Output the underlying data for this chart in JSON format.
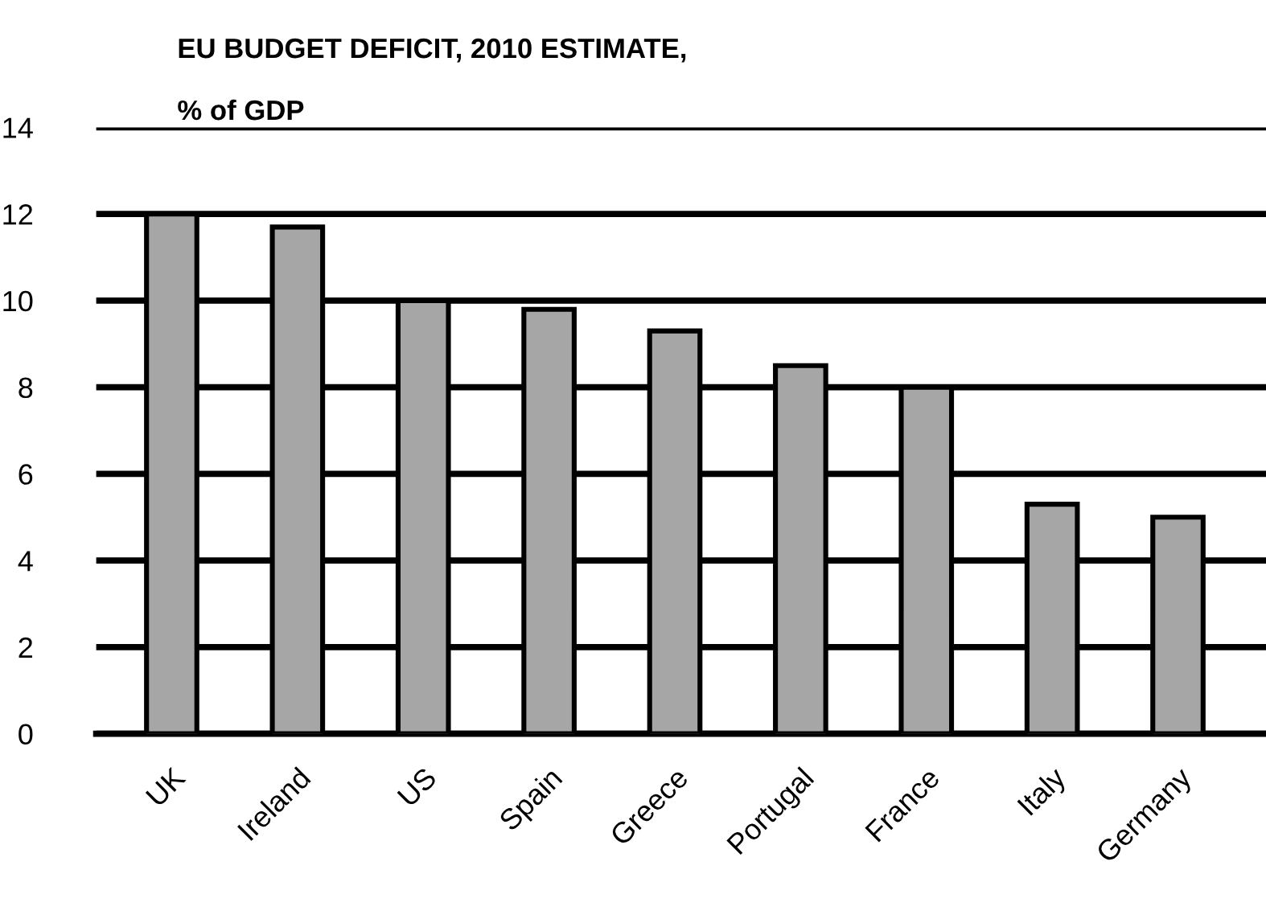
{
  "chart_data": {
    "type": "bar",
    "title": "EU BUDGET DEFICIT, 2010 ESTIMATE,",
    "subtitle": "% of GDP",
    "categories": [
      "UK",
      "Ireland",
      "US",
      "Spain",
      "Greece",
      "Portugal",
      "France",
      "Italy",
      "Germany"
    ],
    "values": [
      12,
      11.7,
      10,
      9.8,
      9.3,
      8.5,
      8,
      5.3,
      5
    ],
    "color": "#a6a6a6",
    "ylim": [
      0,
      14
    ],
    "yticks": [
      0,
      2,
      4,
      6,
      8,
      10,
      12,
      14
    ],
    "grid": "y",
    "legend": false
  }
}
